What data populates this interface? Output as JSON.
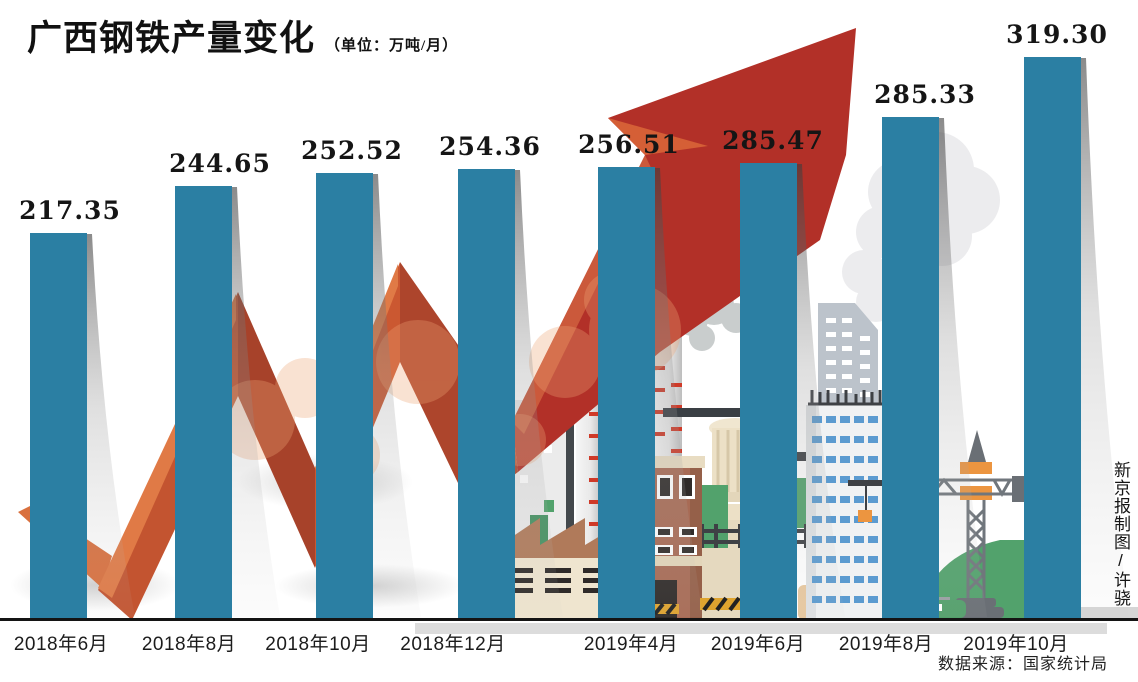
{
  "title": {
    "text": "广西钢铁产量变化",
    "unit": "（单位：万吨/月）"
  },
  "chart_data": {
    "type": "bar",
    "title": "广西钢铁产量变化",
    "unit_note": "（单位：万吨/月）",
    "unit": "万吨/月",
    "categories": [
      "2018年6月",
      "2018年8月",
      "2018年10月",
      "2018年12月",
      "2019年4月",
      "2019年6月",
      "2019年8月",
      "2019年10月"
    ],
    "values": [
      217.35,
      244.65,
      252.52,
      254.36,
      256.51,
      285.47,
      285.33,
      319.3
    ],
    "value_labels": [
      "217.35",
      "244.65",
      "252.52",
      "254.36",
      "256.51",
      "285.47",
      "285.33",
      "319.30"
    ],
    "ylim": [
      0,
      340
    ],
    "grid": false,
    "legend": null,
    "annotations": [
      "rising red trend arrow motif",
      "flat industrial cityscape illustration behind bars"
    ]
  },
  "footer": {
    "source": "数据来源：国家统计局",
    "credit": "新京报制图/许骁"
  },
  "colors": {
    "bar": "#2b7fa3",
    "arrow": "#b23028",
    "ribbon": "#c85730",
    "ribbon_dark": "#a7422a",
    "ribbon_highlight": "#e07a46",
    "axis": "#141414"
  }
}
